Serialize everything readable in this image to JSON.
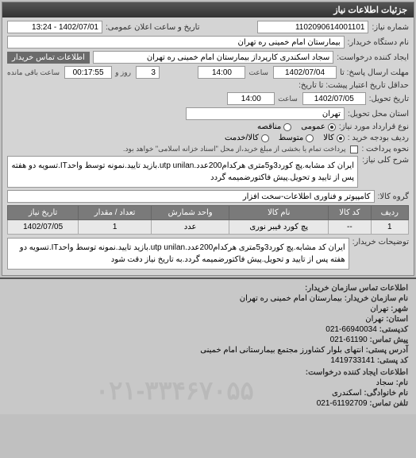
{
  "header": {
    "title": "جزئیات اطلاعات نیاز"
  },
  "fields": {
    "request_number": {
      "label": "شماره نیاز:",
      "value": "1102090614001101"
    },
    "announce_date": {
      "label": "تاریخ و ساعت اعلان عمومی:",
      "value": "1402/07/01 - 13:24"
    },
    "buyer_org": {
      "label": "نام دستگاه خریدار:",
      "value": "بیمارستان امام خمینی ره  تهران"
    },
    "requester": {
      "label": "ایجاد کننده درخواست:",
      "value": "سجاد اسکندری کارپرداز بیمارستان امام خمینی ره  تهران"
    },
    "buyer_contact": {
      "label": "اطلاعات تماس خریدار"
    },
    "response_deadline": {
      "label": "مهلت ارسال پاسخ: تا",
      "date": "1402/07/04",
      "time_label": "ساعت",
      "time": "14:00",
      "days": "3",
      "days_label": "روز و",
      "remaining": "00:17:55",
      "remaining_label": "ساعت باقی مانده"
    },
    "validity": {
      "label": "حداقل تاریخ اعتبار پیشت: تا تاریخ:"
    },
    "delivery_date": {
      "label": "تاریخ تحویل:",
      "date": "1402/07/05",
      "time_label": "ساعت",
      "time": "14:00"
    },
    "delivery_province": {
      "label": "استان محل تحویل:",
      "value": "تهران"
    },
    "quota_type": {
      "label": "نوع قرارداد مورد نیاز:",
      "options": [
        "عمومی",
        "مناقصه"
      ]
    },
    "budget_line": {
      "label": "ردیف بودجه خرید :",
      "options": [
        "کالا",
        "متوسط",
        "کالا/خدمت"
      ]
    },
    "payment_method": {
      "label": "نحوه پرداخت :",
      "checkbox_label": "پرداخت تمام یا بخشی از مبلغ خرید،از محل \"اسناد خزانه اسلامی\" خواهد بود."
    },
    "general_desc": {
      "label": "شرح کلی نیاز:",
      "value": "ایران کد مشابه.پچ کورد3و5متری هرکدام200عدد.utp unilan.بازید تایید.نمونه توسط واحدIT.تسویه دو هفته پس از تایید و تحویل.پیش فاکتورضمیمه گردد"
    },
    "goods_group": {
      "label": "گروه کالا:",
      "value": "کامپیوتر و فناوری اطلاعات-سخت افزار"
    }
  },
  "table": {
    "headers": [
      "ردیف",
      "کد کالا",
      "نام کالا",
      "واحد شمارش",
      "تعداد / مقدار",
      "تاریخ نیاز"
    ],
    "rows": [
      [
        "1",
        "--",
        "پچ کورد فیبر نوری",
        "عدد",
        "1",
        "1402/07/05"
      ]
    ]
  },
  "buyer_notes": {
    "label": "توضیحات خریدار:",
    "value": "ایران کد مشابه.پچ کورد3و5متری هرکدام200عدد.utp unilan.بازید تایید.نمونه توسط واحدIT.تسویه دو هفته پس از تایید و تحویل.پیش فاکتورضمیمه گردد.به تاریخ نیاز دقت شود"
  },
  "contact": {
    "header": "اطلاعات تماس سازمان خریدار:",
    "org_name": {
      "label": "نام سازمان خریدار:",
      "value": "بیمارستان امام خمینی ره تهران"
    },
    "city": {
      "label": "شهر:",
      "value": "تهران"
    },
    "province": {
      "label": "استان:",
      "value": "تهران"
    },
    "zip": {
      "label": "کدپستی:",
      "value": "66940034-021"
    },
    "prefix": {
      "label": "پیش تماس:",
      "value": "61190-021"
    },
    "address": {
      "label": "آدرس پستی:",
      "value": "انتهای بلوار کشاورز مجتمع بیمارستانی امام خمینی"
    },
    "postal_code": {
      "label": "کد پستی:",
      "value": "1419733141"
    },
    "requester_header": "اطلاعات ایجاد کننده درخواست:",
    "name": {
      "label": "نام:",
      "value": "سجاد"
    },
    "family": {
      "label": "نام خانوادگی:",
      "value": "اسکندری"
    },
    "phone": {
      "label": "تلفن تماس:",
      "value": "61192709-021"
    }
  },
  "watermark": "۰۲۱-۳۳۴۶۷۰۵۵"
}
